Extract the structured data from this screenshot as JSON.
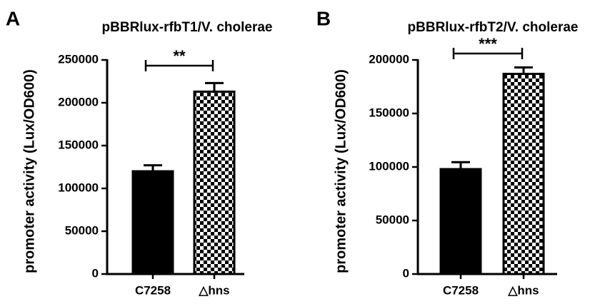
{
  "chart_data": [
    {
      "type": "bar",
      "panel_label": "A",
      "title": "pBBRlux-rfbT1/V. cholerae",
      "y_label": "promoter activity (Lux/OD600)",
      "categories": [
        "C7258",
        "△hns"
      ],
      "series": [
        {
          "color": "#000000",
          "values": [
            120000,
            213000
          ],
          "errors": [
            7000,
            10000
          ]
        }
      ],
      "bar_fills": [
        "solid",
        "checker"
      ],
      "annotations": [
        {
          "text": "**"
        }
      ],
      "ylim": [
        0,
        250000
      ],
      "yticks": [
        0,
        50000,
        100000,
        150000,
        200000,
        250000
      ]
    },
    {
      "type": "bar",
      "panel_label": "B",
      "title": "pBBRlux-rfbT2/V. cholerae",
      "y_label": "promoter activity (Lux/OD600)",
      "categories": [
        "C7258",
        "△hns"
      ],
      "series": [
        {
          "color": "#000000",
          "values": [
            98000,
            187000
          ],
          "errors": [
            6500,
            6000
          ]
        }
      ],
      "bar_fills": [
        "solid",
        "checker"
      ],
      "annotations": [
        {
          "text": "***"
        }
      ],
      "ylim": [
        0,
        200000
      ],
      "yticks": [
        0,
        50000,
        100000,
        150000,
        200000
      ]
    }
  ]
}
